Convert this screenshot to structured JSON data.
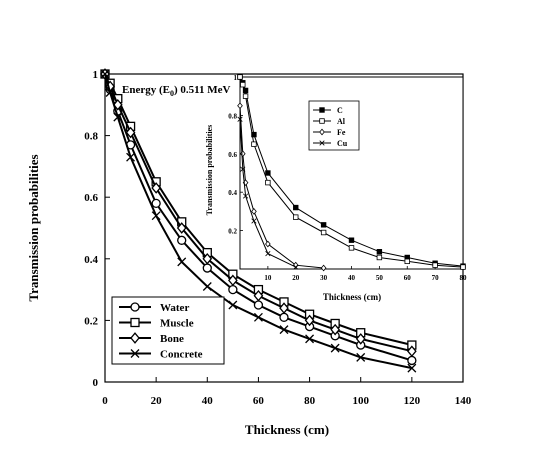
{
  "chart_data": [
    {
      "type": "line",
      "annotation": "Energy (E₀) 0.511 MeV",
      "annotation_parts": {
        "prefix": "Energy (E",
        "sub": "0",
        "suffix": ") 0.511 MeV"
      },
      "xlabel": "Thickness (cm)",
      "ylabel": "Transmission probabilities",
      "xlim": [
        0,
        140
      ],
      "ylim": [
        0,
        1
      ],
      "xticks": [
        0,
        20,
        40,
        60,
        80,
        100,
        120,
        140
      ],
      "yticks": [
        0,
        0.2,
        0.4,
        0.6,
        0.8,
        1
      ],
      "ytick_labels": [
        "0",
        "0.2",
        "0.4",
        "0.6",
        "0.8",
        "1"
      ],
      "grid": false,
      "legend_position": "bottom-left",
      "series": [
        {
          "name": "Water",
          "marker": "circle",
          "x": [
            0,
            2,
            5,
            10,
            20,
            30,
            40,
            50,
            60,
            70,
            80,
            90,
            100,
            120
          ],
          "y": [
            1.0,
            0.95,
            0.88,
            0.77,
            0.58,
            0.46,
            0.37,
            0.3,
            0.25,
            0.21,
            0.18,
            0.15,
            0.12,
            0.07
          ]
        },
        {
          "name": "Muscle",
          "marker": "square",
          "x": [
            0,
            2,
            5,
            10,
            20,
            30,
            40,
            50,
            60,
            70,
            80,
            90,
            100,
            120
          ],
          "y": [
            1.0,
            0.97,
            0.92,
            0.83,
            0.65,
            0.52,
            0.42,
            0.35,
            0.3,
            0.26,
            0.22,
            0.19,
            0.16,
            0.12
          ]
        },
        {
          "name": "Bone",
          "marker": "diamond",
          "x": [
            0,
            2,
            5,
            10,
            20,
            30,
            40,
            50,
            60,
            70,
            80,
            90,
            100,
            120
          ],
          "y": [
            1.0,
            0.96,
            0.9,
            0.81,
            0.63,
            0.5,
            0.4,
            0.33,
            0.28,
            0.24,
            0.2,
            0.17,
            0.14,
            0.1
          ]
        },
        {
          "name": "Concrete",
          "marker": "x",
          "x": [
            0,
            2,
            5,
            10,
            20,
            30,
            40,
            50,
            60,
            70,
            80,
            90,
            100,
            120
          ],
          "y": [
            1.0,
            0.94,
            0.86,
            0.73,
            0.54,
            0.39,
            0.31,
            0.25,
            0.21,
            0.17,
            0.14,
            0.11,
            0.08,
            0.045
          ]
        }
      ]
    },
    {
      "type": "line",
      "xlabel": "Thickness (cm)",
      "ylabel": "Transmission probabilities",
      "xlim": [
        0,
        80
      ],
      "ylim": [
        0,
        1
      ],
      "xticks": [
        10,
        20,
        30,
        40,
        50,
        60,
        70,
        80
      ],
      "yticks": [
        0.2,
        0.4,
        0.6,
        0.8,
        1
      ],
      "ytick_labels": [
        "0.2",
        "0.4",
        "0.6",
        "0.8",
        "1"
      ],
      "grid": false,
      "legend_position": "top-center",
      "series": [
        {
          "name": "C",
          "marker": "filled-square",
          "x": [
            0,
            1,
            2,
            5,
            10,
            20,
            30,
            40,
            50,
            60,
            70,
            80
          ],
          "y": [
            1.0,
            0.97,
            0.93,
            0.7,
            0.5,
            0.32,
            0.23,
            0.15,
            0.09,
            0.06,
            0.03,
            0.015
          ]
        },
        {
          "name": "Al",
          "marker": "square",
          "x": [
            0,
            1,
            2,
            5,
            10,
            20,
            30,
            40,
            50,
            60,
            70,
            80
          ],
          "y": [
            1.0,
            0.96,
            0.9,
            0.65,
            0.45,
            0.27,
            0.19,
            0.11,
            0.06,
            0.04,
            0.02,
            0.01
          ]
        },
        {
          "name": "Fe",
          "marker": "diamond",
          "x": [
            0,
            1,
            2,
            5,
            10,
            20,
            30
          ],
          "y": [
            0.85,
            0.6,
            0.45,
            0.3,
            0.13,
            0.02,
            0.005
          ]
        },
        {
          "name": "Cu",
          "marker": "x",
          "x": [
            0,
            1,
            2,
            5,
            10,
            20
          ],
          "y": [
            0.78,
            0.52,
            0.38,
            0.25,
            0.08,
            0.01
          ]
        }
      ]
    }
  ]
}
